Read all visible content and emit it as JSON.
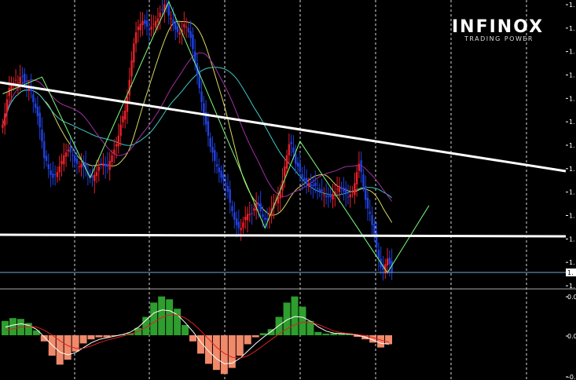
{
  "brand": {
    "name": "INFINOX",
    "tagline": "TRADING POWER"
  },
  "colors": {
    "background": "#000000",
    "bull": "#e8202a",
    "bear": "#2040e0",
    "grid": "#ffffff",
    "trendline": "#ffffff",
    "zigzag": "#7cff7c",
    "ma_yellow": "#d8d860",
    "ma_cyan": "#40c8c8",
    "ma_purple": "#a030a0",
    "hist_pos": "#2e9e2e",
    "hist_neg": "#f08a6a",
    "signal_white": "#ffffff",
    "signal_red": "#e02020",
    "price_line": "#6fa8dc"
  },
  "chart_data": [
    {
      "type": "candlestick",
      "title": "",
      "y_tick_labels": [
        "1.",
        "1.",
        "1.",
        "1.",
        "1.",
        "1.",
        "1.",
        "1.",
        "1.",
        "1.",
        "1.",
        "1.",
        "1."
      ],
      "current_price_label": "1.",
      "ylim": [
        0,
        1
      ],
      "grid": "vertical dashed",
      "close": [
        0.56,
        0.6,
        0.65,
        0.69,
        0.7,
        0.71,
        0.72,
        0.71,
        0.73,
        0.73,
        0.71,
        0.69,
        0.69,
        0.68,
        0.64,
        0.62,
        0.59,
        0.55,
        0.5,
        0.44,
        0.43,
        0.4,
        0.38,
        0.37,
        0.38,
        0.39,
        0.41,
        0.43,
        0.45,
        0.46,
        0.47,
        0.46,
        0.45,
        0.43,
        0.42,
        0.41,
        0.42,
        0.41,
        0.4,
        0.38,
        0.37,
        0.37,
        0.38,
        0.39,
        0.41,
        0.42,
        0.42,
        0.41,
        0.41,
        0.43,
        0.45,
        0.47,
        0.49,
        0.52,
        0.56,
        0.59,
        0.61,
        0.66,
        0.72,
        0.79,
        0.85,
        0.89,
        0.91,
        0.92,
        0.93,
        0.92,
        0.91,
        0.9,
        0.91,
        0.92,
        0.93,
        0.94,
        0.96,
        0.97,
        0.99,
        0.98,
        0.95,
        0.94,
        0.92,
        0.9,
        0.89,
        0.89,
        0.9,
        0.92,
        0.91,
        0.89,
        0.87,
        0.83,
        0.78,
        0.74,
        0.69,
        0.64,
        0.6,
        0.56,
        0.52,
        0.48,
        0.46,
        0.43,
        0.41,
        0.39,
        0.37,
        0.36,
        0.34,
        0.32,
        0.28,
        0.25,
        0.22,
        0.2,
        0.19,
        0.19,
        0.21,
        0.23,
        0.24,
        0.24,
        0.24,
        0.26,
        0.28,
        0.27,
        0.25,
        0.23,
        0.22,
        0.22,
        0.24,
        0.26,
        0.28,
        0.29,
        0.3,
        0.32,
        0.36,
        0.41,
        0.45,
        0.49,
        0.49,
        0.46,
        0.42,
        0.41,
        0.39,
        0.37,
        0.36,
        0.35,
        0.35,
        0.34,
        0.34,
        0.34,
        0.33,
        0.32,
        0.32,
        0.31,
        0.3,
        0.3,
        0.3,
        0.31,
        0.32,
        0.33,
        0.34,
        0.33,
        0.32,
        0.31,
        0.3,
        0.31,
        0.32,
        0.35,
        0.39,
        0.42,
        0.39,
        0.34,
        0.29,
        0.26,
        0.24,
        0.2,
        0.16,
        0.12,
        0.08,
        0.05,
        0.04,
        0.06,
        0.08,
        0.06,
        0.03
      ]
    },
    {
      "type": "histogram",
      "title": "",
      "y_tick_labels": [
        "0.0",
        "0.0",
        "-0."
      ],
      "ylim": [
        -1,
        1
      ],
      "values": [
        0.35,
        0.42,
        0.4,
        0.3,
        0.12,
        -0.15,
        -0.5,
        -0.72,
        -0.6,
        -0.4,
        -0.2,
        -0.1,
        -0.05,
        -0.05,
        -0.02,
        0.02,
        0.05,
        0.18,
        0.45,
        0.8,
        0.95,
        0.88,
        0.65,
        0.25,
        -0.15,
        -0.45,
        -0.7,
        -0.85,
        -0.95,
        -0.8,
        -0.5,
        -0.22,
        -0.05,
        0.05,
        0.15,
        0.45,
        0.8,
        0.95,
        0.7,
        0.35,
        0.08,
        0.04,
        0.05,
        0.05,
        0.03,
        -0.04,
        -0.1,
        -0.18,
        -0.3,
        -0.22
      ],
      "lines": [
        {
          "values": [
            0.2,
            0.25,
            0.28,
            0.24,
            0.14,
            -0.05,
            -0.25,
            -0.42,
            -0.48,
            -0.42,
            -0.3,
            -0.18,
            -0.1,
            -0.06,
            -0.02,
            0.02,
            0.08,
            0.2,
            0.38,
            0.55,
            0.62,
            0.6,
            0.5,
            0.3,
            0.08,
            -0.18,
            -0.4,
            -0.58,
            -0.7,
            -0.68,
            -0.56,
            -0.38,
            -0.2,
            -0.04,
            0.1,
            0.25,
            0.38,
            0.46,
            0.44,
            0.34,
            0.2,
            0.1,
            0.05,
            0.04,
            0.03,
            0.0,
            -0.05,
            -0.12,
            -0.2,
            -0.22
          ]
        },
        {
          "values": [
            0.12,
            0.16,
            0.2,
            0.22,
            0.2,
            0.12,
            0.0,
            -0.14,
            -0.26,
            -0.32,
            -0.32,
            -0.26,
            -0.18,
            -0.12,
            -0.07,
            -0.02,
            0.03,
            0.1,
            0.2,
            0.32,
            0.44,
            0.5,
            0.5,
            0.42,
            0.28,
            0.1,
            -0.1,
            -0.3,
            -0.45,
            -0.54,
            -0.56,
            -0.5,
            -0.38,
            -0.24,
            -0.1,
            0.04,
            0.16,
            0.26,
            0.32,
            0.32,
            0.26,
            0.18,
            0.1,
            0.06,
            0.04,
            0.02,
            -0.01,
            -0.06,
            -0.12,
            -0.17
          ]
        }
      ]
    }
  ]
}
